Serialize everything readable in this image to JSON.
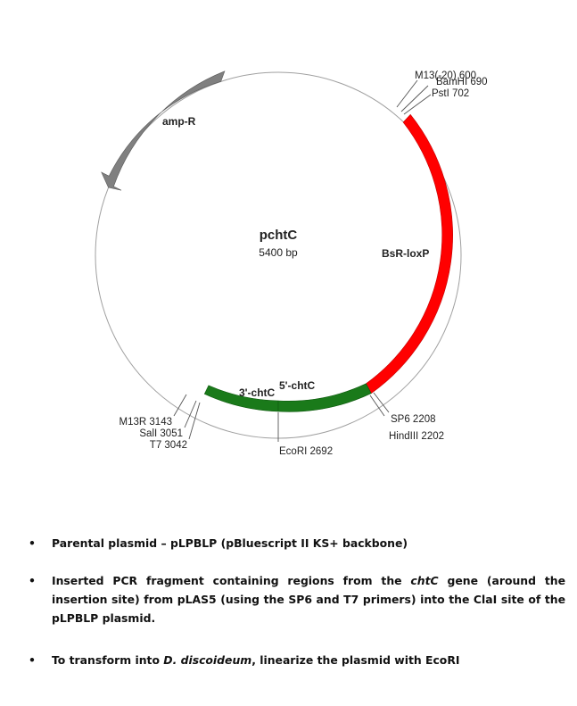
{
  "plasmid": {
    "name": "pchtC",
    "size_label": "5400 bp",
    "total_bp": 5400
  },
  "features": [
    {
      "id": "amp-r",
      "label": "amp-R",
      "color": "#808080"
    },
    {
      "id": "bsr-loxp",
      "label": "BsR-loxP",
      "color": "#ff0000"
    },
    {
      "id": "chtc-3",
      "label": "3'-chtC",
      "color": "#1a7a1a"
    },
    {
      "id": "chtc-5",
      "label": "5'-chtC",
      "color": "#1a7a1a"
    }
  ],
  "sites": [
    {
      "label": "M13(-20) 600",
      "position_bp": 600
    },
    {
      "label": "BamHI 690",
      "position_bp": 690
    },
    {
      "label": "PstI 702",
      "position_bp": 702
    },
    {
      "label": "SP6 2208",
      "position_bp": 2208
    },
    {
      "label": "HindIII 2202",
      "position_bp": 2202
    },
    {
      "label": "EcoRI 2692",
      "position_bp": 2692
    },
    {
      "label": "M13R 3143",
      "position_bp": 3143
    },
    {
      "label": "SalI 3051",
      "position_bp": 3051
    },
    {
      "label": "T7 3042",
      "position_bp": 3042
    }
  ],
  "notes": {
    "bullet": "•",
    "n1": "Parental plasmid – pLPBLP (pBluescript II KS+ backbone)",
    "n2_pre": "Inserted PCR fragment containing regions from the ",
    "n2_gene": "chtC",
    "n2_post": " gene (around the insertion site) from pLAS5 (using the SP6 and T7 primers) into the ClaI site of the pLPBLP plasmid.",
    "n3_pre": "To transform into ",
    "n3_org": "D. discoideum",
    "n3_post": ", linearize the plasmid with EcoRI"
  },
  "colors": {
    "backbone": "#a0a0a0",
    "site_line": "#555555"
  }
}
